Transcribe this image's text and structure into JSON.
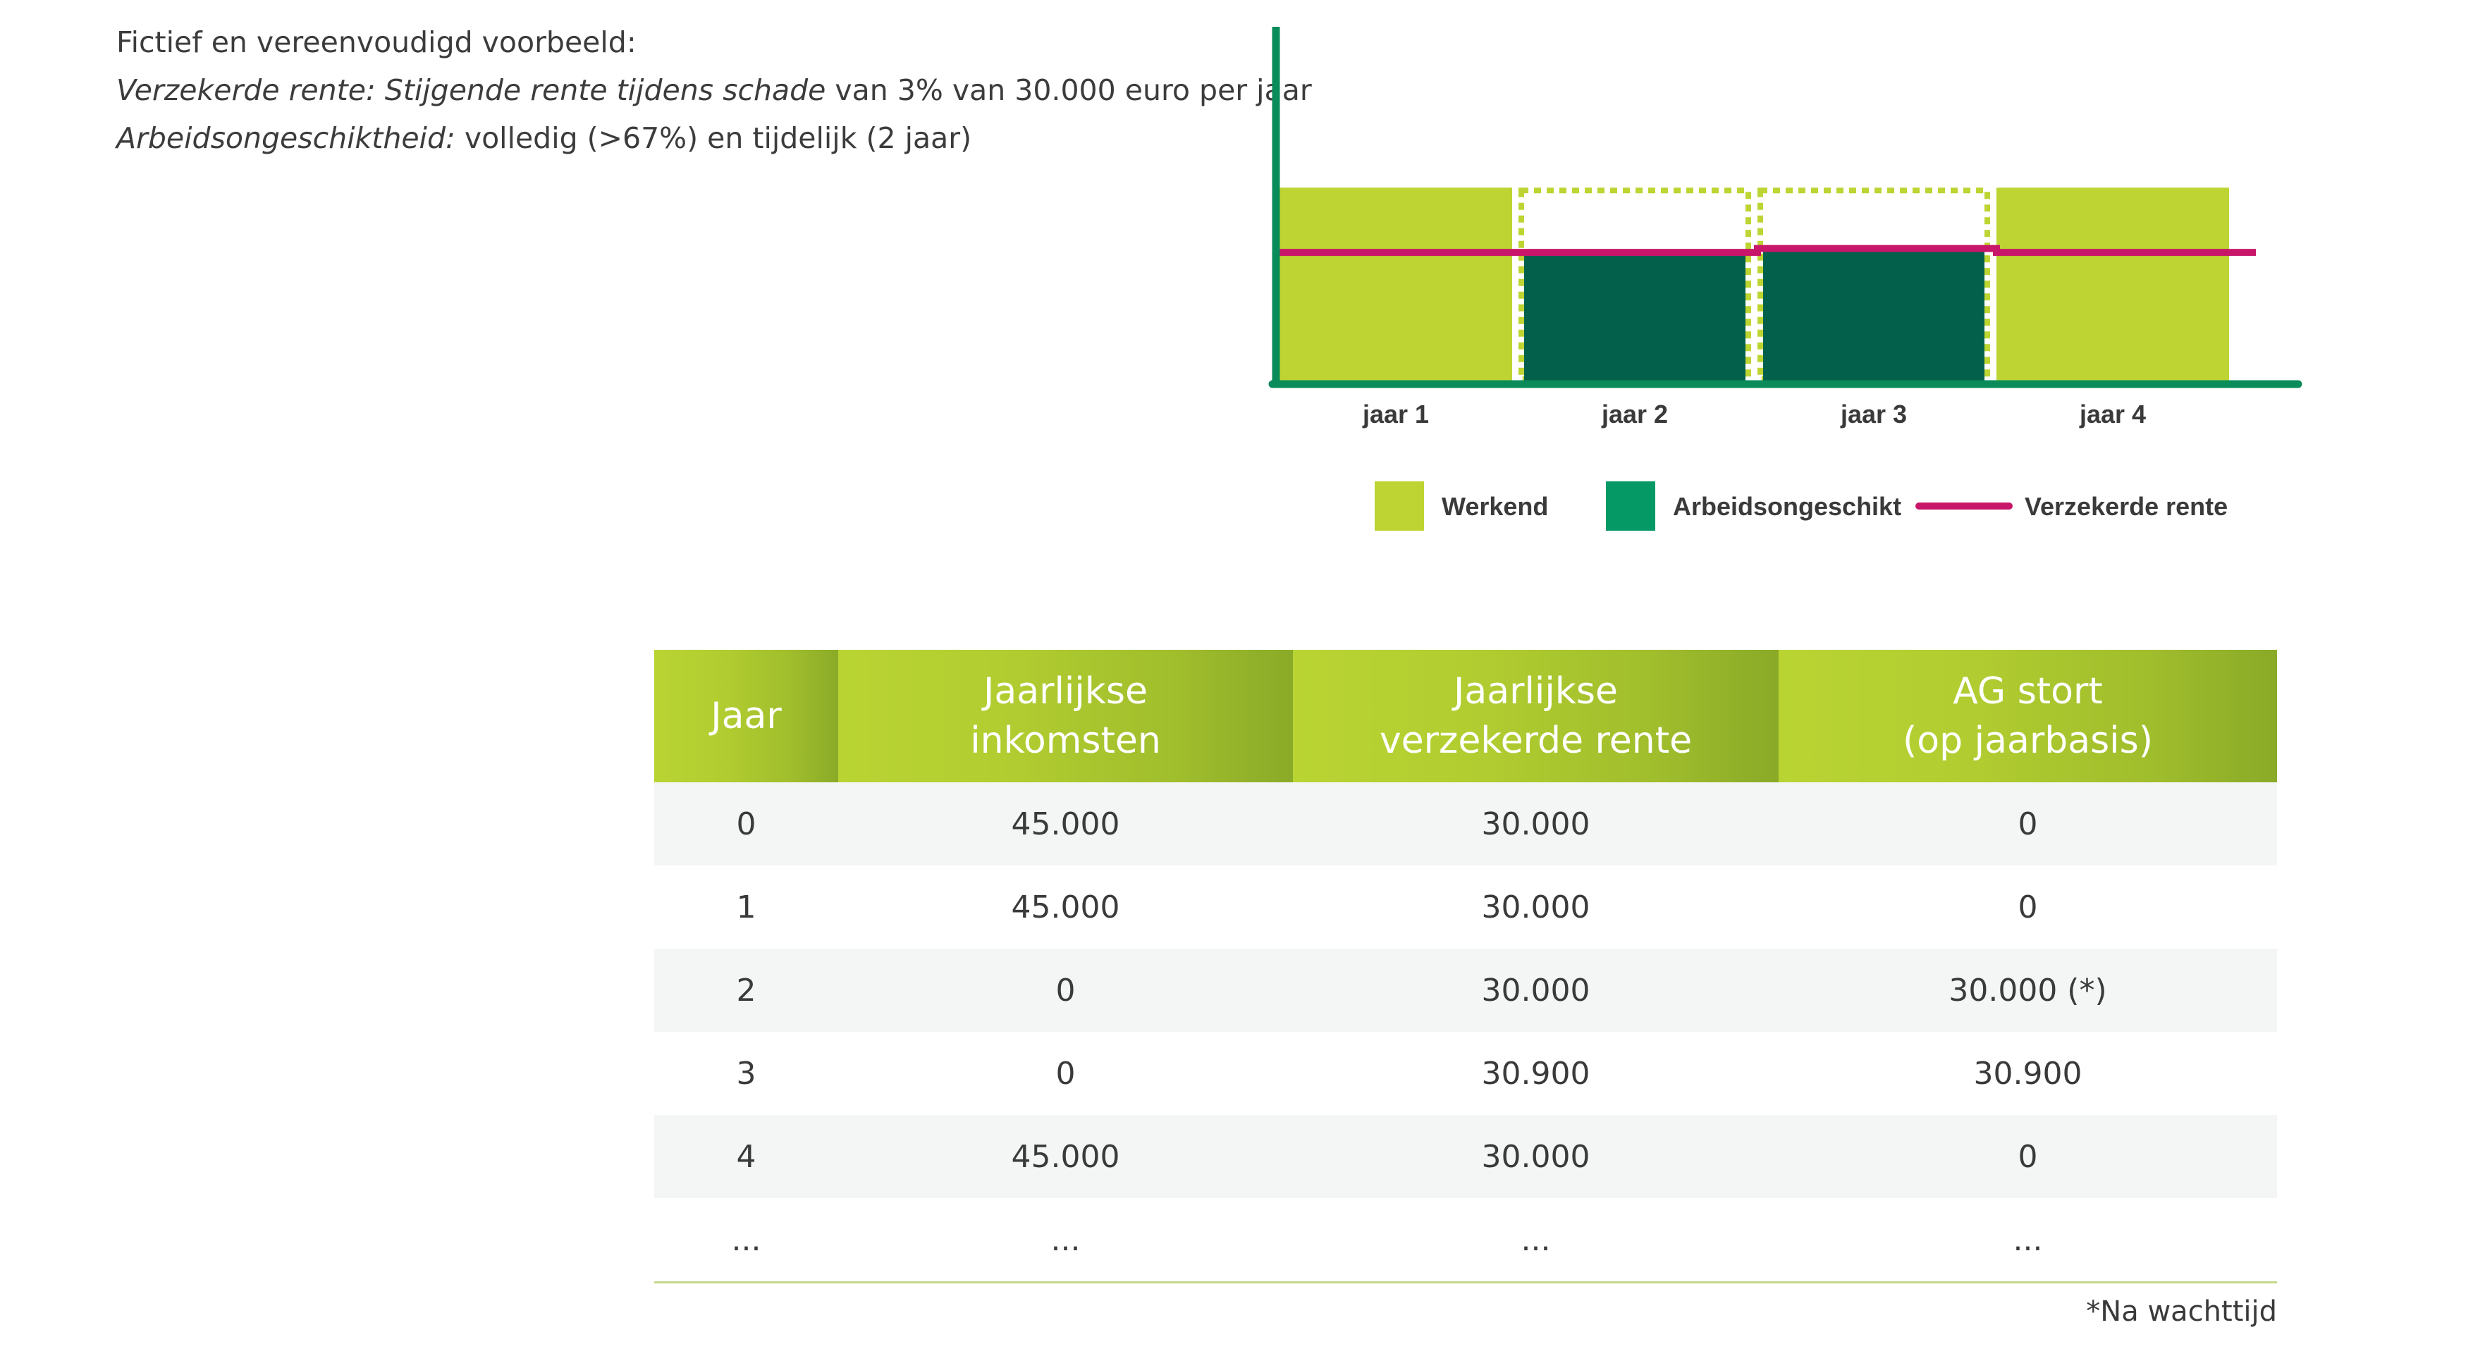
{
  "intro": {
    "line1": "Fictief en vereenvoudigd voorbeeld:",
    "line2_label": "Verzekerde rente: Stijgende rente tijdens schade",
    "line2_text": " van 3% van 30.000 euro per jaar",
    "line3_label": "Arbeidsongeschiktheid:",
    "line3_text": " volledig (>67%) en tijdelijk (2 jaar)"
  },
  "chart_data": {
    "type": "bar",
    "categories": [
      "jaar 1",
      "jaar 2",
      "jaar 3",
      "jaar 4"
    ],
    "series": [
      {
        "name": "Werkend",
        "color": "#bed432",
        "values": [
          45000,
          0,
          0,
          45000
        ]
      },
      {
        "name": "Arbeidsongeschikt",
        "color": "#02604b",
        "values": [
          0,
          30000,
          30900,
          0
        ]
      },
      {
        "name": "Verzekerde rente",
        "color": "#c8176a",
        "type": "step-line",
        "values": [
          30000,
          30000,
          30900,
          30000
        ]
      }
    ],
    "legend": [
      "Werkend",
      "Arbeidsongeschikt",
      "Verzekerde rente"
    ],
    "legend_position": "bottom",
    "legend_swatch_colors": [
      "#bed432",
      "#049965",
      "#c8176a"
    ],
    "axis_color": "#0a8c5a",
    "dotted_outline_color": "#bed432",
    "ylim": [
      0,
      55000
    ],
    "grid": false
  },
  "table": {
    "headers": [
      [
        "Jaar"
      ],
      [
        "Jaarlijkse",
        "inkomsten"
      ],
      [
        "Jaarlijkse",
        "verzekerde rente"
      ],
      [
        "AG stort",
        "(op jaarbasis)"
      ]
    ],
    "rows": [
      [
        "0",
        "45.000",
        "30.000",
        "0"
      ],
      [
        "1",
        "45.000",
        "30.000",
        "0"
      ],
      [
        "2",
        "0",
        "30.000",
        "30.000 (*)"
      ],
      [
        "3",
        "0",
        "30.900",
        "30.900"
      ],
      [
        "4",
        "45.000",
        "30.000",
        "0"
      ],
      [
        "...",
        "...",
        "...",
        "..."
      ]
    ]
  },
  "footnote": "*Na wachttijd"
}
